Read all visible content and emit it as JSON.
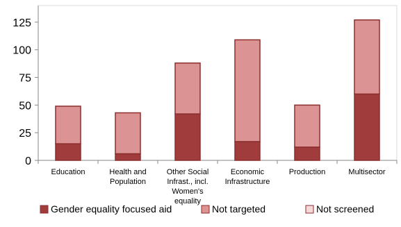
{
  "chart_data": {
    "type": "bar",
    "stacked": true,
    "categories": [
      [
        "Education"
      ],
      [
        "Health and",
        "Population"
      ],
      [
        "Other Social",
        "Infrast., incl.",
        "Women's",
        "equality"
      ],
      [
        "Economic",
        "Infrastructure"
      ],
      [
        "Production"
      ],
      [
        "Multisector"
      ]
    ],
    "series": [
      {
        "name": "Gender equality focused aid",
        "values": [
          15,
          6,
          42,
          17,
          12,
          60
        ],
        "color": "#A03C3C"
      },
      {
        "name": "Not targeted",
        "values": [
          34,
          37,
          46,
          92,
          38,
          67
        ],
        "color": "#DC9393"
      },
      {
        "name": "Not screened",
        "values": [
          0,
          0,
          0,
          0,
          0,
          0
        ],
        "color": "#F6D8D8"
      }
    ],
    "ylim": [
      0,
      140
    ],
    "yticks": [
      "0",
      "25",
      "50",
      "75",
      "100",
      "125"
    ],
    "ytick_values": [
      0,
      25,
      50,
      75,
      100,
      125
    ],
    "grid": false,
    "legend_position": "bottom"
  }
}
